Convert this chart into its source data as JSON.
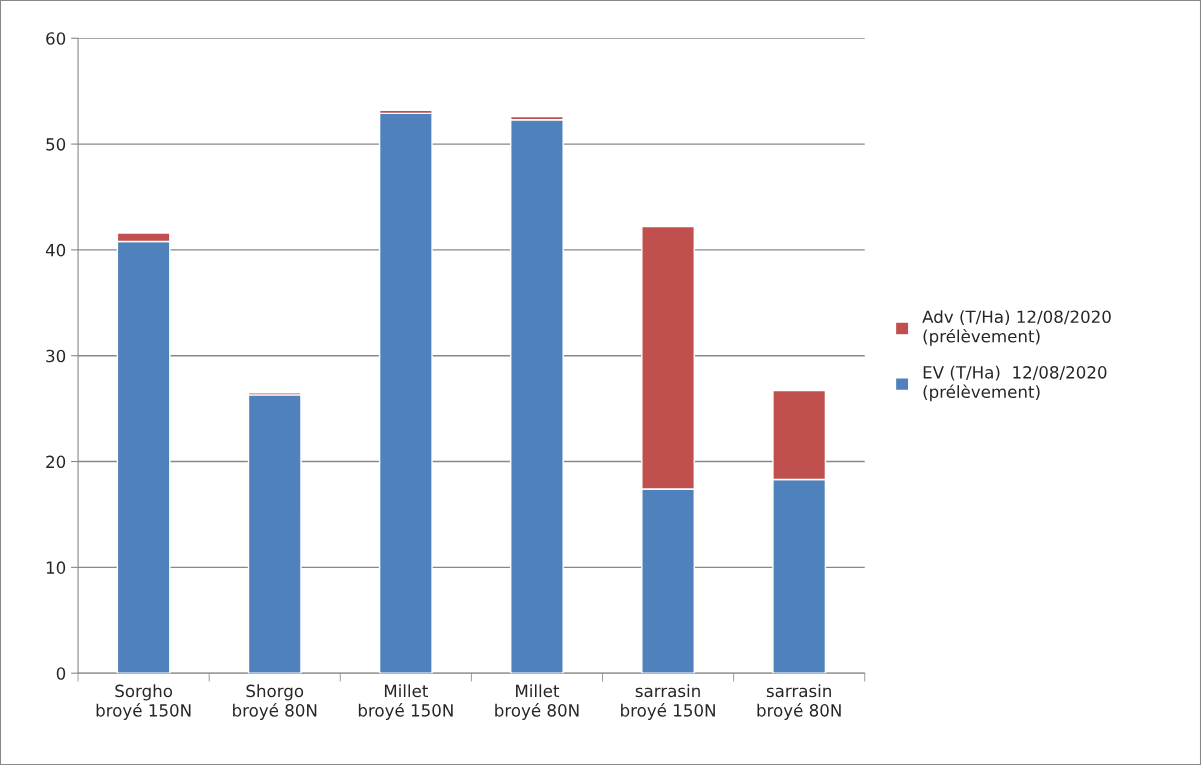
{
  "chart_data": {
    "type": "bar",
    "stacked": true,
    "categories": [
      "Sorgho\nbroyé 150N",
      "Shorgo\nbroyé 80N",
      "Millet\nbroyé 150N",
      "Millet\nbroyé 80N",
      "sarrasin\nbroyé 150N",
      "sarrasin\nbroyé 80N"
    ],
    "series": [
      {
        "name": "EV (T/Ha)  12/08/2020\n(prélèvement)",
        "color": "#4f81bd",
        "values": [
          40.8,
          26.3,
          52.9,
          52.3,
          17.4,
          18.3
        ]
      },
      {
        "name": "Adv (T/Ha) 12/08/2020\n(prélèvement)",
        "color": "#c0504d",
        "values": [
          0.8,
          0.2,
          0.3,
          0.3,
          24.8,
          8.4
        ]
      }
    ],
    "ylim": [
      0,
      60
    ],
    "yticks": [
      0,
      10,
      20,
      30,
      40,
      50,
      60
    ],
    "grid": "y",
    "legend": "right"
  }
}
